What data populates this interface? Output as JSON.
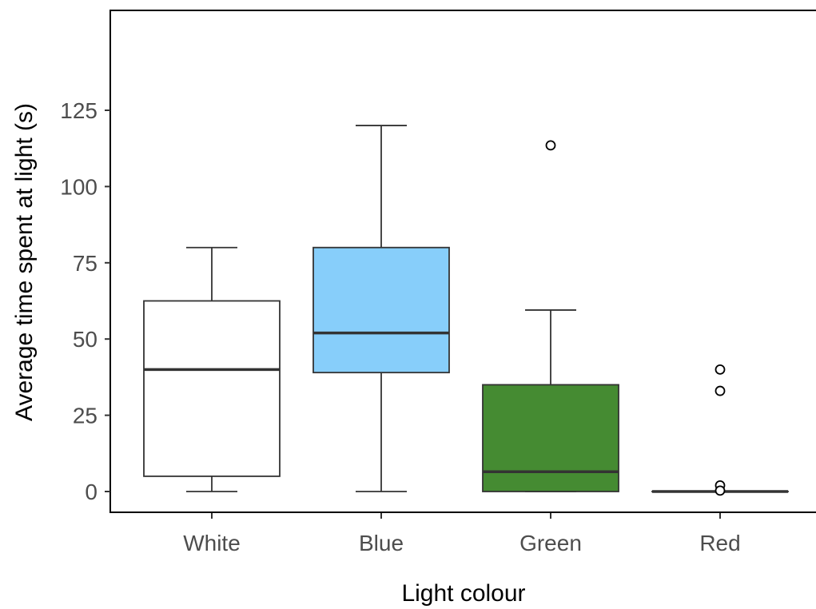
{
  "chart_data": {
    "type": "boxplot",
    "xlabel": "Light colour",
    "ylabel": "Average time spent at light (s)",
    "ylim": [
      -5,
      125
    ],
    "yticks": [
      0,
      25,
      50,
      75,
      100,
      125
    ],
    "grid": false,
    "categories": [
      "White",
      "Blue",
      "Green",
      "Red"
    ],
    "series": [
      {
        "category": "White",
        "fill": "#ffffff",
        "whisker_low": 0,
        "q1": 5,
        "median": 40,
        "q3": 62.5,
        "whisker_high": 80,
        "outliers": []
      },
      {
        "category": "Blue",
        "fill": "#87cefa",
        "whisker_low": 0,
        "q1": 39,
        "median": 52,
        "q3": 80,
        "whisker_high": 120,
        "outliers": []
      },
      {
        "category": "Green",
        "fill": "#458b32",
        "whisker_low": 0,
        "q1": 0,
        "median": 6.5,
        "q3": 35,
        "whisker_high": 59.5,
        "outliers": [
          113.5
        ]
      },
      {
        "category": "Red",
        "fill": "#458b32",
        "whisker_low": 0,
        "q1": 0,
        "median": 0,
        "q3": 0,
        "whisker_high": 0,
        "outliers": [
          40,
          33,
          2,
          0.3
        ]
      }
    ]
  }
}
